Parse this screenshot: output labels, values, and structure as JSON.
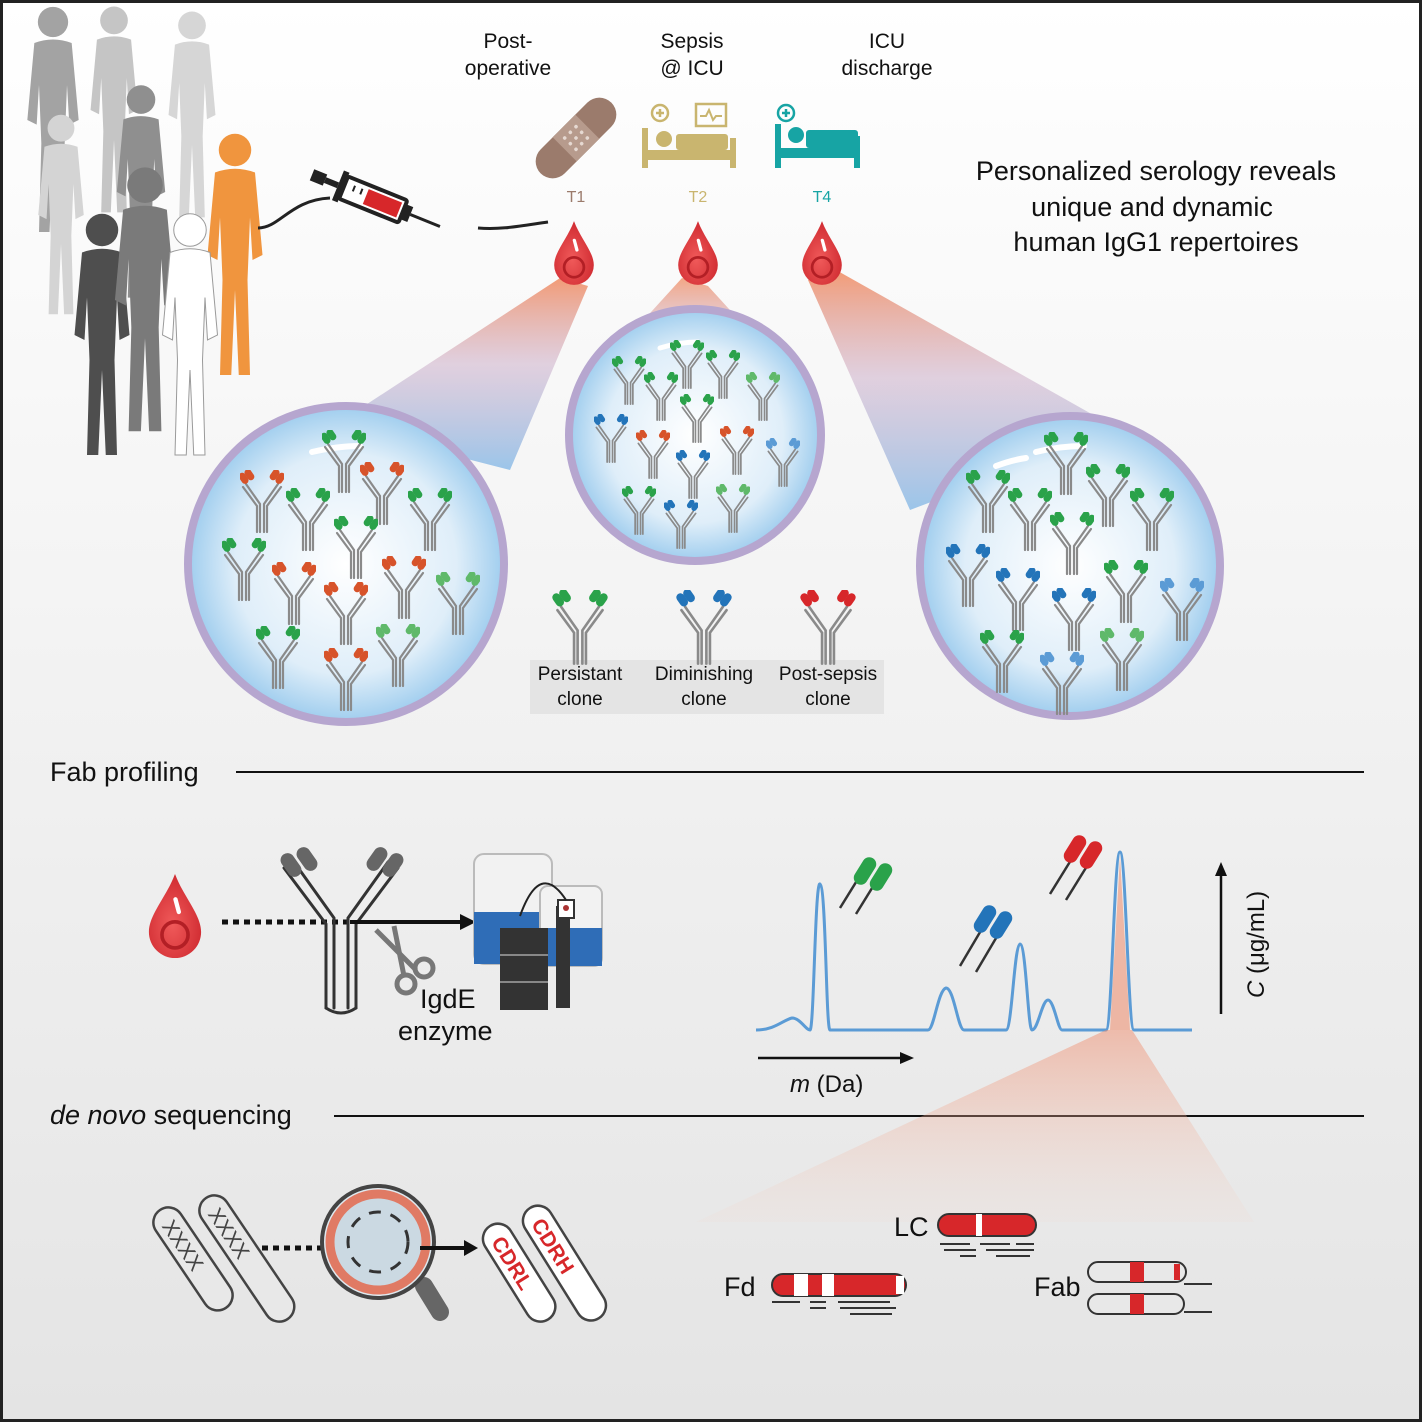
{
  "timepoints": [
    {
      "id": "T1",
      "label_lines": [
        "Post-",
        "operative"
      ],
      "tag": "T1",
      "color": "#9b7b6c",
      "icon": "bandage-icon"
    },
    {
      "id": "T2",
      "label_lines": [
        "Sepsis",
        "@ ICU"
      ],
      "tag": "T2",
      "color": "#c9b56f",
      "icon": "hospital-bed-monitor-icon"
    },
    {
      "id": "T4",
      "label_lines": [
        "ICU",
        "discharge"
      ],
      "tag": "T4",
      "color": "#17a4a4",
      "icon": "hospital-bed-icon"
    }
  ],
  "headline": [
    "Personalized serology reveals",
    "unique and dynamic",
    "human IgG1 repertoires"
  ],
  "clones": [
    {
      "label_lines": [
        "Persistant",
        "clone"
      ],
      "color": "#2aa24a"
    },
    {
      "label_lines": [
        "Diminishing",
        "clone"
      ],
      "color": "#2374b9"
    },
    {
      "label_lines": [
        "Post-sepsis",
        "clone"
      ],
      "color": "#d7272a"
    }
  ],
  "sections": {
    "fab_profiling": "Fab profiling",
    "de_novo_prefix": "de novo",
    "de_novo_suffix": " sequencing"
  },
  "fab": {
    "enzyme_lines": [
      "IgdE",
      "enzyme"
    ]
  },
  "spectrum": {
    "x_label_italic": "m",
    "x_label_rest": " (Da)",
    "y_label_italic": "C",
    "y_label_rest": " (μg/mL)",
    "line_color": "#5b9bd5"
  },
  "sequencing": {
    "cdr_labels": [
      "CDRL",
      "CDRH"
    ],
    "unknown_marks": "XXXX",
    "fragments": [
      "LC",
      "Fd",
      "Fab"
    ]
  },
  "colors": {
    "green": "#2aa24a",
    "blue": "#2374b9",
    "red": "#d7272a",
    "blood": "#e23a3f",
    "orange_person": "#f0953e"
  }
}
